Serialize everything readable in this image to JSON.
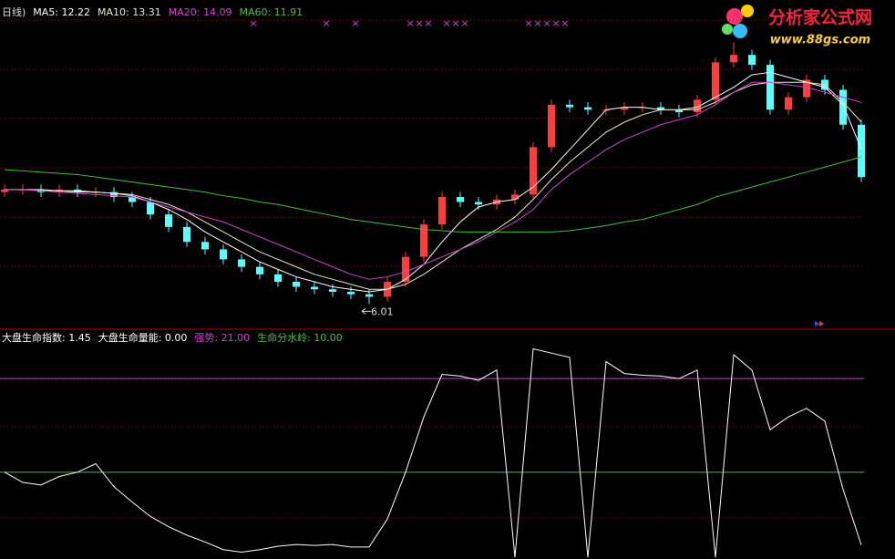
{
  "chart_data": [
    {
      "type": "candlestick",
      "title": "日线)",
      "ylim": [
        5.0,
        18.2
      ],
      "up_color": "#ff3c3c",
      "down_color": "#54ffff",
      "signal_marker": "×",
      "signal_color": "#d040d0",
      "open": [
        10.5,
        10.6,
        10.6,
        10.5,
        10.6,
        10.5,
        10.5,
        10.3,
        10.1,
        9.6,
        9.1,
        8.5,
        8.2,
        7.8,
        7.5,
        7.2,
        6.9,
        6.7,
        6.6,
        6.5,
        6.4,
        6.3,
        6.9,
        7.9,
        9.2,
        10.3,
        10.1,
        10.0,
        10.2,
        10.4,
        12.3,
        14.0,
        13.9,
        13.8,
        13.8,
        13.9,
        13.9,
        13.8,
        13.7,
        14.2,
        15.7,
        16.0,
        15.6,
        13.8,
        14.3,
        15.0,
        14.6,
        13.2
      ],
      "high": [
        10.8,
        10.8,
        10.8,
        10.8,
        10.8,
        10.7,
        10.7,
        10.5,
        10.3,
        9.8,
        9.3,
        8.7,
        8.4,
        8.0,
        7.7,
        7.4,
        7.1,
        6.9,
        6.8,
        6.7,
        6.6,
        7.1,
        8.1,
        9.4,
        10.5,
        10.5,
        10.3,
        10.4,
        10.6,
        12.5,
        14.2,
        14.2,
        14.1,
        14.0,
        14.1,
        14.1,
        14.1,
        14.0,
        14.4,
        15.9,
        16.5,
        16.2,
        15.8,
        14.5,
        15.2,
        15.2,
        14.8,
        13.4
      ],
      "low": [
        10.3,
        10.4,
        10.3,
        10.3,
        10.3,
        10.3,
        10.1,
        9.9,
        9.4,
        8.9,
        8.3,
        8.0,
        7.6,
        7.3,
        7.0,
        6.7,
        6.5,
        6.4,
        6.3,
        6.2,
        6.01,
        6.1,
        6.7,
        7.7,
        9.0,
        9.9,
        9.8,
        9.8,
        10.0,
        10.2,
        12.1,
        13.7,
        13.6,
        13.6,
        13.6,
        13.7,
        13.6,
        13.5,
        13.5,
        14.0,
        15.5,
        15.4,
        13.6,
        13.6,
        14.1,
        14.4,
        13.0,
        10.9
      ],
      "close": [
        10.6,
        10.6,
        10.5,
        10.6,
        10.5,
        10.5,
        10.3,
        10.1,
        9.6,
        9.1,
        8.5,
        8.2,
        7.8,
        7.5,
        7.2,
        6.9,
        6.7,
        6.6,
        6.5,
        6.4,
        6.3,
        6.9,
        7.9,
        9.2,
        10.3,
        10.1,
        10.0,
        10.2,
        10.4,
        12.3,
        14.0,
        13.9,
        13.8,
        13.8,
        13.9,
        13.9,
        13.8,
        13.7,
        14.2,
        15.7,
        16.0,
        15.6,
        13.8,
        14.3,
        15.0,
        14.6,
        13.2,
        11.1
      ],
      "series": [
        {
          "name": "MA5",
          "legend_label": "MA5: 12.22",
          "color": "#ffffff",
          "values": [
            10.6,
            10.6,
            10.6,
            10.55,
            10.55,
            10.5,
            10.45,
            10.35,
            10.1,
            9.8,
            9.4,
            8.9,
            8.5,
            8.1,
            7.7,
            7.4,
            7.1,
            6.9,
            6.7,
            6.6,
            6.5,
            6.6,
            7.0,
            7.6,
            8.5,
            9.3,
            9.9,
            10.1,
            10.2,
            10.7,
            11.4,
            12.2,
            13.0,
            13.8,
            13.9,
            13.9,
            13.8,
            13.8,
            13.9,
            14.3,
            14.7,
            15.2,
            15.3,
            15.1,
            14.9,
            14.7,
            14.0,
            12.22
          ]
        },
        {
          "name": "MA10",
          "legend_label": "MA10: 13.31",
          "color": "#e8e8c8",
          "values": [
            10.6,
            10.6,
            10.55,
            10.55,
            10.5,
            10.5,
            10.45,
            10.4,
            10.2,
            10.0,
            9.7,
            9.3,
            8.9,
            8.5,
            8.1,
            7.8,
            7.5,
            7.2,
            7.0,
            6.8,
            6.6,
            6.6,
            6.8,
            7.2,
            7.7,
            8.2,
            8.6,
            9.0,
            9.5,
            10.2,
            11.0,
            11.7,
            12.3,
            12.9,
            13.3,
            13.6,
            13.8,
            13.8,
            13.8,
            14.1,
            14.5,
            14.8,
            14.9,
            14.9,
            14.9,
            14.8,
            14.1,
            13.31
          ]
        },
        {
          "name": "MA20",
          "legend_label": "MA20: 14.09",
          "color": "#d040d0",
          "values": [
            10.6,
            10.6,
            10.55,
            10.5,
            10.45,
            10.4,
            10.35,
            10.3,
            10.1,
            9.9,
            9.7,
            9.5,
            9.3,
            9.0,
            8.7,
            8.4,
            8.1,
            7.8,
            7.5,
            7.2,
            7.0,
            7.1,
            7.3,
            7.6,
            7.9,
            8.2,
            8.5,
            8.9,
            9.3,
            9.8,
            10.6,
            11.2,
            11.7,
            12.2,
            12.6,
            12.9,
            13.2,
            13.4,
            13.6,
            14.0,
            14.5,
            14.9,
            14.9,
            14.8,
            14.7,
            14.5,
            14.3,
            14.09
          ]
        },
        {
          "name": "MA60",
          "legend_label": "MA60: 11.91",
          "color": "#40c040",
          "values": [
            11.4,
            11.35,
            11.3,
            11.25,
            11.2,
            11.1,
            11.0,
            10.9,
            10.8,
            10.7,
            10.6,
            10.5,
            10.35,
            10.25,
            10.1,
            10.0,
            9.85,
            9.7,
            9.55,
            9.4,
            9.3,
            9.2,
            9.1,
            9.0,
            8.95,
            8.9,
            8.9,
            8.9,
            8.9,
            8.9,
            8.9,
            8.95,
            9.05,
            9.15,
            9.3,
            9.4,
            9.6,
            9.8,
            10.0,
            10.3,
            10.5,
            10.7,
            10.9,
            11.1,
            11.3,
            11.5,
            11.7,
            11.91
          ]
        }
      ]
    },
    {
      "type": "line",
      "ylim": [
        -0.2,
        26.7
      ],
      "series": [
        {
          "name": "大盘生命指数",
          "legend_label": "大盘生命指数: 1.45",
          "color": "#ffffff",
          "values": [
            10.0,
            8.8,
            8.5,
            9.5,
            10.0,
            11.0,
            8.3,
            6.5,
            4.8,
            3.6,
            2.6,
            1.8,
            0.9,
            0.6,
            0.9,
            1.3,
            1.5,
            1.4,
            1.5,
            1.2,
            1.2,
            4.5,
            10.0,
            16.5,
            21.5,
            21.3,
            20.8,
            22.0,
            0.0,
            24.5,
            24.0,
            23.5,
            0.0,
            23.0,
            21.6,
            21.4,
            21.3,
            21.0,
            22.0,
            0.0,
            23.8,
            22.0,
            15.0,
            16.5,
            17.5,
            16.0,
            8.0,
            1.45
          ]
        }
      ],
      "extra_label": {
        "label": "大盘生命量能: 0.00",
        "color": "#ffffff"
      },
      "levels": [
        {
          "label": "强势: 21.00",
          "value": 21,
          "color": "#d040d0"
        },
        {
          "label": "生命分水岭: 10.00",
          "value": 10,
          "color": "#40c040"
        }
      ]
    }
  ],
  "watermark": {
    "title": "分析家公式网",
    "url": "www.88gs.com"
  }
}
